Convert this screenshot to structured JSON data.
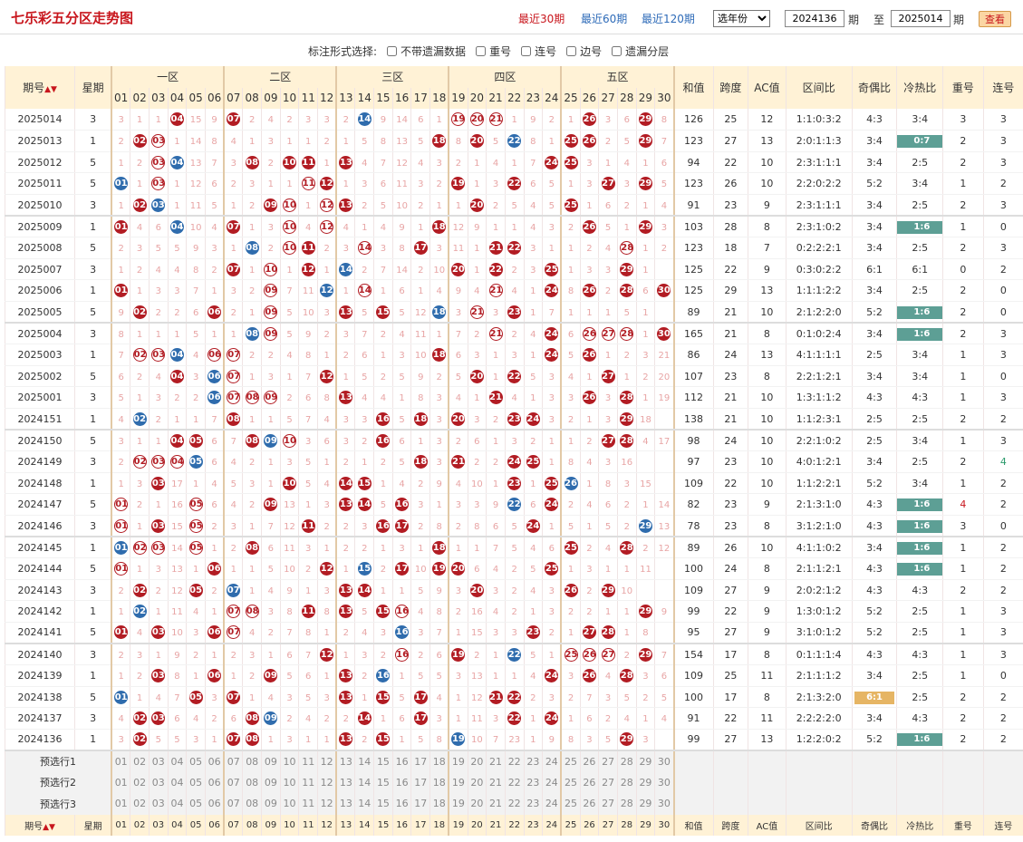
{
  "header": {
    "title": "七乐彩五分区走势图",
    "link30": "最近30期",
    "link60": "最近60期",
    "link120": "最近120期",
    "year_select": "选年份",
    "period_from": "2024136",
    "period_to": "2025014",
    "qi": "期",
    "zhi": "至",
    "query_btn": "查看"
  },
  "options": {
    "label": "标注形式选择:",
    "items": [
      "不带遗漏数据",
      "重号",
      "连号",
      "边号",
      "遗漏分层"
    ]
  },
  "columns": {
    "qihao": "期号",
    "xingqi": "星期",
    "zones": [
      "一区",
      "二区",
      "三区",
      "四区",
      "五区"
    ],
    "stats": [
      "和值",
      "跨度",
      "AC值",
      "区间比",
      "奇偶比",
      "冷热比",
      "重号",
      "连号"
    ],
    "sort_arrow": "▲▼"
  },
  "selection_rows": [
    "预选行1",
    "预选行2",
    "预选行3"
  ],
  "colors": {
    "red_ball": "#b21c23",
    "blue_ball": "#2f6cad",
    "accent": "#c8161d",
    "hot_badge": "#5d9f95"
  },
  "rows": [
    {
      "qi": "2025014",
      "wd": "3",
      "cells": "3 1 1 R04 15 9 R07 2 4 2 3 3 2 B14 9 14 6 1 O19 O20 O21 1 9 2 1 R26 3 6 R29 8",
      "sum": "126",
      "span": "25",
      "ac": "12",
      "zone": "1:1:0:3:2",
      "oe": "4:3",
      "ch": "3:4",
      "ch_t": "",
      "rep": "3",
      "lian": "3"
    },
    {
      "qi": "2025013",
      "wd": "1",
      "cells": "2 R02 O03 1 14 8 4 1 3 1 1 2 1 5 8 13 5 R18 8 R20 5 B22 8 1 R25 R26 2 5 R29 7",
      "sum": "123",
      "span": "27",
      "ac": "13",
      "zone": "2:0:1:1:3",
      "oe": "3:4",
      "ch": "0:7",
      "ch_t": "h",
      "rep": "2",
      "lian": "3"
    },
    {
      "qi": "2025012",
      "wd": "5",
      "cells": "1 2 O03 B04 13 7 3 R08 2 R10 R11 1 R13 4 7 12 4 3 2 1 4 1 7 R24 R25 3 1 4 1 6",
      "sum": "94",
      "span": "22",
      "ac": "10",
      "zone": "2:3:1:1:1",
      "oe": "3:4",
      "ch": "2:5",
      "ch_t": "",
      "rep": "2",
      "lian": "3"
    },
    {
      "qi": "2025011",
      "wd": "5",
      "cells": "B01 1 O03 1 12 6 2 3 1 1 O11 R12 1 3 6 11 3 2 R19 1 3 R22 6 5 1 3 R27 3 R29 5",
      "sum": "123",
      "span": "26",
      "ac": "10",
      "zone": "2:2:0:2:2",
      "oe": "5:2",
      "ch": "3:4",
      "ch_t": "",
      "rep": "1",
      "lian": "2"
    },
    {
      "qi": "2025010",
      "wd": "3",
      "cells": "1 R02 B03 1 11 5 1 2 R09 O10 1 O12 R13 2 5 10 2 1 1 R20 2 5 4 5 R25 1 6 2 1 4",
      "sum": "91",
      "span": "23",
      "ac": "9",
      "zone": "2:3:1:1:1",
      "oe": "3:4",
      "ch": "2:5",
      "ch_t": "",
      "rep": "2",
      "lian": "3",
      "end": 1
    },
    {
      "qi": "2025009",
      "wd": "1",
      "cells": "R01 4 6 B04 10 4 R07 1 3 O10 4 O12 4 1 4 9 1 R18 12 9 1 1 4 3 2 R26 5 1 R29 3",
      "sum": "103",
      "span": "28",
      "ac": "8",
      "zone": "2:3:1:0:2",
      "oe": "3:4",
      "ch": "1:6",
      "ch_t": "h",
      "rep": "1",
      "lian": "0"
    },
    {
      "qi": "2025008",
      "wd": "5",
      "cells": "2 3 5 5 9 3 1 B08 2 O10 R11 2 3 O14 3 8 R17 3 11 1 R21 R22 3 1 1 2 4 O28 1 2",
      "sum": "123",
      "span": "18",
      "ac": "7",
      "zone": "0:2:2:2:1",
      "oe": "3:4",
      "ch": "2:5",
      "ch_t": "",
      "rep": "2",
      "lian": "3"
    },
    {
      "qi": "2025007",
      "wd": "3",
      "cells": "1 2 4 4 8 2 R07 1 O10 1 R12 1 B14 2 7 14 2 10 R20 1 R22 2 3 R25 1 3 3 R29 1",
      "sum": "125",
      "span": "22",
      "ac": "9",
      "zone": "0:3:0:2:2",
      "oe": "6:1",
      "ch": "6:1",
      "ch_t": "",
      "rep": "0",
      "lian": "2",
      "fix": 1
    },
    {
      "qi": "2025006",
      "wd": "1",
      "cells": "R01 1 3 3 7 1 3 2 O09 7 11 B12 1 O14 1 6 1 4 9 4 O21 4 1 R24 8 R26 2 R28 6 R30",
      "sum": "125",
      "span": "29",
      "ac": "13",
      "zone": "1:1:1:2:2",
      "oe": "3:4",
      "ch": "2:5",
      "ch_t": "",
      "rep": "2",
      "lian": "0"
    },
    {
      "qi": "2025005",
      "wd": "5",
      "cells": "9 R02 2 2 6 R06 2 1 O09 5 10 3 R13 5 R15 5 12 B18 3 O21 3 R23 1 7 1 1 1 5 1",
      "sum": "89",
      "span": "21",
      "ac": "10",
      "zone": "2:1:2:2:0",
      "oe": "5:2",
      "ch": "1:6",
      "ch_t": "h",
      "rep": "2",
      "lian": "0",
      "end": 1,
      "fix": 2
    },
    {
      "qi": "2025004",
      "wd": "3",
      "cells": "8 1 1 1 5 1 1 B08 O09 5 9 2 3 7 2 4 11 1 7 2 O21 2 4 R24 6 O26 O27 O28 1 R30",
      "sum": "165",
      "span": "21",
      "ac": "8",
      "zone": "0:1:0:2:4",
      "oe": "3:4",
      "ch": "1:6",
      "ch_t": "h",
      "rep": "2",
      "lian": "3"
    },
    {
      "qi": "2025003",
      "wd": "1",
      "cells": "7 O02 O03 B04 4 O06 O07 2 2 4 8 1 2 6 1 3 10 R18 6 3 1 3 1 R24 5 R26 1 2 3 21",
      "sum": "86",
      "span": "24",
      "ac": "13",
      "zone": "4:1:1:1:1",
      "oe": "2:5",
      "ch": "3:4",
      "ch_t": "",
      "rep": "1",
      "lian": "3"
    },
    {
      "qi": "2025002",
      "wd": "5",
      "cells": "6 2 4 R04 3 B06 O07 1 3 1 7 R12 1 5 2 5 9 2 5 R20 1 R22 5 3 4 1 R27 1 2 20",
      "sum": "107",
      "span": "23",
      "ac": "8",
      "zone": "2:2:1:2:1",
      "oe": "3:4",
      "ch": "3:4",
      "ch_t": "",
      "rep": "1",
      "lian": "0"
    },
    {
      "qi": "2025001",
      "wd": "3",
      "cells": "5 1 3 2 2 B06 O07 O08 O09 2 6 8 R13 4 4 1 8 3 4 1 R21 4 1 3 3 R26 3 R28 1 19",
      "sum": "112",
      "span": "21",
      "ac": "10",
      "zone": "1:3:1:1:2",
      "oe": "4:3",
      "ch": "4:3",
      "ch_t": "",
      "rep": "1",
      "lian": "3"
    },
    {
      "qi": "2024151",
      "wd": "1",
      "cells": "4 B02 2 1 1 7 R08 1 1 5 7 4 3 3 R16 5 R18 3 R20 3 2 R23 R24 3 2 1 3 R29 18",
      "sum": "138",
      "span": "21",
      "ac": "10",
      "zone": "1:1:2:3:1",
      "oe": "2:5",
      "ch": "2:5",
      "ch_t": "",
      "rep": "2",
      "lian": "2",
      "end": 1
    },
    {
      "qi": "2024150",
      "wd": "5",
      "cells": "3 1 1 R04 R05 6 7 R08 B09 O10 3 6 3 2 R16 6 1 3 2 6 1 3 2 1 1 2 R27 R28 4 17",
      "sum": "98",
      "span": "24",
      "ac": "10",
      "zone": "2:2:1:0:2",
      "oe": "2:5",
      "ch": "3:4",
      "ch_t": "",
      "rep": "1",
      "lian": "3"
    },
    {
      "qi": "2024149",
      "wd": "3",
      "cells": "2 O02 O03 O04 B05 6 4 2 1 3 5 1 2 1 2 5 R18 3 R21 2 2 R24 R25 1 8 4 3 16",
      "sum": "97",
      "span": "23",
      "ac": "10",
      "zone": "4:0:1:2:1",
      "oe": "3:4",
      "ch": "2:5",
      "ch_t": "",
      "rep": "2",
      "lian": "4",
      "lian_t": "g"
    },
    {
      "qi": "2024148",
      "wd": "1",
      "cells": "1 3 R03 17 1 4 5 3 1 R10 5 4 R14 R15 1 4 2 9 4 10 1 R23 1 R25 B26 1 8 3 15",
      "sum": "109",
      "span": "22",
      "ac": "10",
      "zone": "1:1:2:2:1",
      "oe": "5:2",
      "ch": "3:4",
      "ch_t": "",
      "rep": "1",
      "lian": "2"
    },
    {
      "qi": "2024147",
      "wd": "5",
      "cells": "O01 2 1 16 O05 6 4 2 R09 13 1 3 R13 R14 5 R16 3 1 3 3 9 B22 6 R24 2 4 6 2 1 14",
      "sum": "82",
      "span": "23",
      "ac": "9",
      "zone": "2:1:3:1:0",
      "oe": "4:3",
      "ch": "1:6",
      "ch_t": "h",
      "rep": "4",
      "rep_t": "r",
      "lian": "2"
    },
    {
      "qi": "2024146",
      "wd": "3",
      "cells": "O01 1 R03 15 O05 2 3 1 7 12 R11 2 2 3 R16 R17 2 8 2 8 6 5 R24 1 5 1 5 2 B29 13",
      "sum": "78",
      "span": "23",
      "ac": "8",
      "zone": "3:1:2:1:0",
      "oe": "4:3",
      "ch": "1:6",
      "ch_t": "h",
      "rep": "3",
      "lian": "0",
      "end": 1
    },
    {
      "qi": "2024145",
      "wd": "1",
      "cells": "B01 O02 O03 14 O05 1 2 R08 6 11 3 1 2 2 1 3 1 R18 1 1 7 5 4 6 R25 2 4 R28 2 12",
      "sum": "89",
      "span": "26",
      "ac": "10",
      "zone": "4:1:1:0:2",
      "oe": "3:4",
      "ch": "1:6",
      "ch_t": "h",
      "rep": "1",
      "lian": "2"
    },
    {
      "qi": "2024144",
      "wd": "5",
      "cells": "O01 1 3 13 1 R06 1 1 5 10 2 R12 1 B15 2 R17 10 R19 R20 6 4 2 5 R25 1 3 1 1 11",
      "sum": "100",
      "span": "24",
      "ac": "8",
      "zone": "2:1:1:2:1",
      "oe": "4:3",
      "ch": "1:6",
      "ch_t": "h",
      "rep": "1",
      "lian": "2"
    },
    {
      "qi": "2024143",
      "wd": "3",
      "cells": "2 R02 2 12 R05 2 B07 1 4 9 1 3 R13 R14 1 1 5 9 3 R20 3 2 4 3 R26 2 R29 10",
      "sum": "109",
      "span": "27",
      "ac": "9",
      "zone": "2:0:2:1:2",
      "oe": "4:3",
      "ch": "4:3",
      "ch_t": "",
      "rep": "2",
      "lian": "2"
    },
    {
      "qi": "2024142",
      "wd": "1",
      "cells": "1 B02 1 11 4 1 O07 O08 3 8 R11 8 R13 5 R15 O16 4 8 2 16 4 2 1 3 2 2 1 1 R29 9",
      "sum": "99",
      "span": "22",
      "ac": "9",
      "zone": "1:3:0:1:2",
      "oe": "5:2",
      "ch": "2:5",
      "ch_t": "",
      "rep": "1",
      "lian": "3"
    },
    {
      "qi": "2024141",
      "wd": "5",
      "cells": "R01 4 R03 10 3 R06 O07 4 2 7 8 1 2 4 3 B16 3 7 1 15 3 3 R23 2 1 R27 R28 1 8",
      "sum": "95",
      "span": "27",
      "ac": "9",
      "zone": "3:1:0:1:2",
      "oe": "5:2",
      "ch": "2:5",
      "ch_t": "",
      "rep": "1",
      "lian": "3",
      "end": 1
    },
    {
      "qi": "2024140",
      "wd": "3",
      "cells": "2 3 1 9 2 1 2 3 1 6 7 R12 1 3 2 O16 2 6 R19 2 1 B22 5 1 O25 O26 O27 2 R29 7",
      "sum": "154",
      "span": "17",
      "ac": "8",
      "zone": "0:1:1:1:4",
      "oe": "4:3",
      "ch": "4:3",
      "ch_t": "",
      "rep": "1",
      "lian": "3"
    },
    {
      "qi": "2024139",
      "wd": "1",
      "cells": "1 2 R03 8 1 R06 1 2 R09 5 6 1 R13 2 B16 1 5 5 3 13 1 1 4 R24 3 R26 4 R28 3 6",
      "sum": "109",
      "span": "25",
      "ac": "11",
      "zone": "2:1:1:1:2",
      "oe": "3:4",
      "ch": "2:5",
      "ch_t": "",
      "rep": "1",
      "lian": "0"
    },
    {
      "qi": "2024138",
      "wd": "5",
      "cells": "B01 1 4 7 R05 3 R07 1 4 3 5 3 R13 1 R15 5 R17 4 1 12 R21 R22 2 3 2 7 3 5 2 5",
      "sum": "100",
      "span": "17",
      "ac": "8",
      "zone": "2:1:3:2:0",
      "oe": "6:1",
      "oe_t": "o",
      "ch": "2:5",
      "ch_t": "",
      "rep": "2",
      "lian": "2"
    },
    {
      "qi": "2024137",
      "wd": "3",
      "cells": "4 R02 R03 6 4 2 6 R08 B09 2 4 2 2 R14 1 6 R17 3 1 11 3 R22 1 R24 1 6 2 4 1 4",
      "sum": "91",
      "span": "22",
      "ac": "11",
      "zone": "2:2:2:2:0",
      "oe": "3:4",
      "ch": "4:3",
      "ch_t": "",
      "rep": "2",
      "lian": "2"
    },
    {
      "qi": "2024136",
      "wd": "1",
      "cells": "3 R02 5 5 3 1 R07 R08 1 3 1 1 R13 2 R15 1 5 8 B19 10 7 23 1 9 8 3 5 R29 3",
      "sum": "99",
      "span": "27",
      "ac": "13",
      "zone": "1:2:2:0:2",
      "oe": "5:2",
      "ch": "1:6",
      "ch_t": "h",
      "rep": "2",
      "lian": "2",
      "end": 1
    }
  ]
}
